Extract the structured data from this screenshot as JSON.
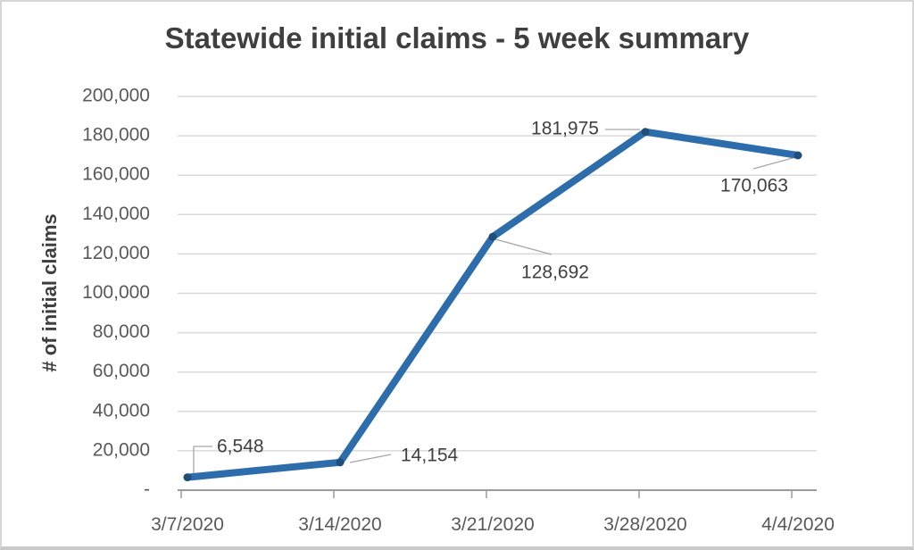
{
  "window": {
    "background": "#ffffff",
    "frame_border_color": "#d6d6d6"
  },
  "chart_data": {
    "type": "line",
    "title": "Statewide initial claims - 5 week summary",
    "xlabel": "",
    "ylabel": "# of initial claims",
    "categories": [
      "3/7/2020",
      "3/14/2020",
      "3/21/2020",
      "3/28/2020",
      "4/4/2020"
    ],
    "series": [
      {
        "name": "initial claims",
        "values": [
          6548,
          14154,
          128692,
          181975,
          170063
        ]
      }
    ],
    "point_labels": [
      "6,548",
      "14,154",
      "128,692",
      "181,975",
      "170,063"
    ],
    "y_axis": {
      "min": 0,
      "max": 200000,
      "step": 20000,
      "tick_labels_top_to_bottom": [
        "200,000",
        "180,000",
        "160,000",
        "140,000",
        "120,000",
        "100,000",
        "80,000",
        "60,000",
        "40,000",
        "20,000",
        "-"
      ]
    },
    "grid": true,
    "legend": "none",
    "colors": {
      "line": "#2e6dab",
      "marker": "#1f4e79",
      "gridline": "#d9d9d9",
      "axis_line": "#9b9b9b",
      "leader_line": "#a6a6a6",
      "tick_text": "#595959",
      "data_label_text": "#404040",
      "title_text": "#3f3f3f"
    }
  }
}
